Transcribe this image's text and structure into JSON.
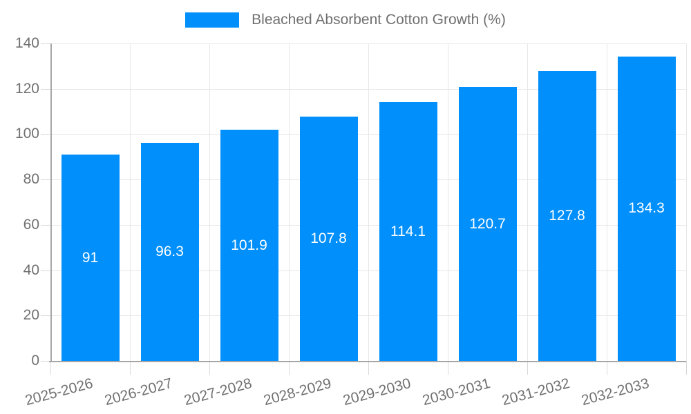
{
  "legend": {
    "label": "Bleached Absorbent Cotton Growth (%)"
  },
  "chart_data": {
    "type": "bar",
    "title": "Bleached Absorbent Cotton Growth (%)",
    "categories": [
      "2025-2026",
      "2026-2027",
      "2027-2028",
      "2028-2029",
      "2029-2030",
      "2030-2031",
      "2031-2032",
      "2032-2033"
    ],
    "values": [
      91,
      96.3,
      101.9,
      107.8,
      114.1,
      120.7,
      127.8,
      134.3
    ],
    "value_labels": [
      "91",
      "96.3",
      "101.9",
      "107.8",
      "114.1",
      "120.7",
      "127.8",
      "134.3"
    ],
    "xlabel": "",
    "ylabel": "",
    "ylim": [
      0,
      140
    ],
    "yticks": [
      0,
      20,
      40,
      60,
      80,
      100,
      120,
      140
    ],
    "grid": true,
    "legend_position": "top-center",
    "colors": {
      "bar": "#008FFB",
      "grid": "#e7e7e7",
      "axis": "#a6a6a6",
      "tick": "#d9d9d9",
      "axis_text": "#707070",
      "value_text": "#ffffff",
      "background": "#ffffff"
    }
  }
}
